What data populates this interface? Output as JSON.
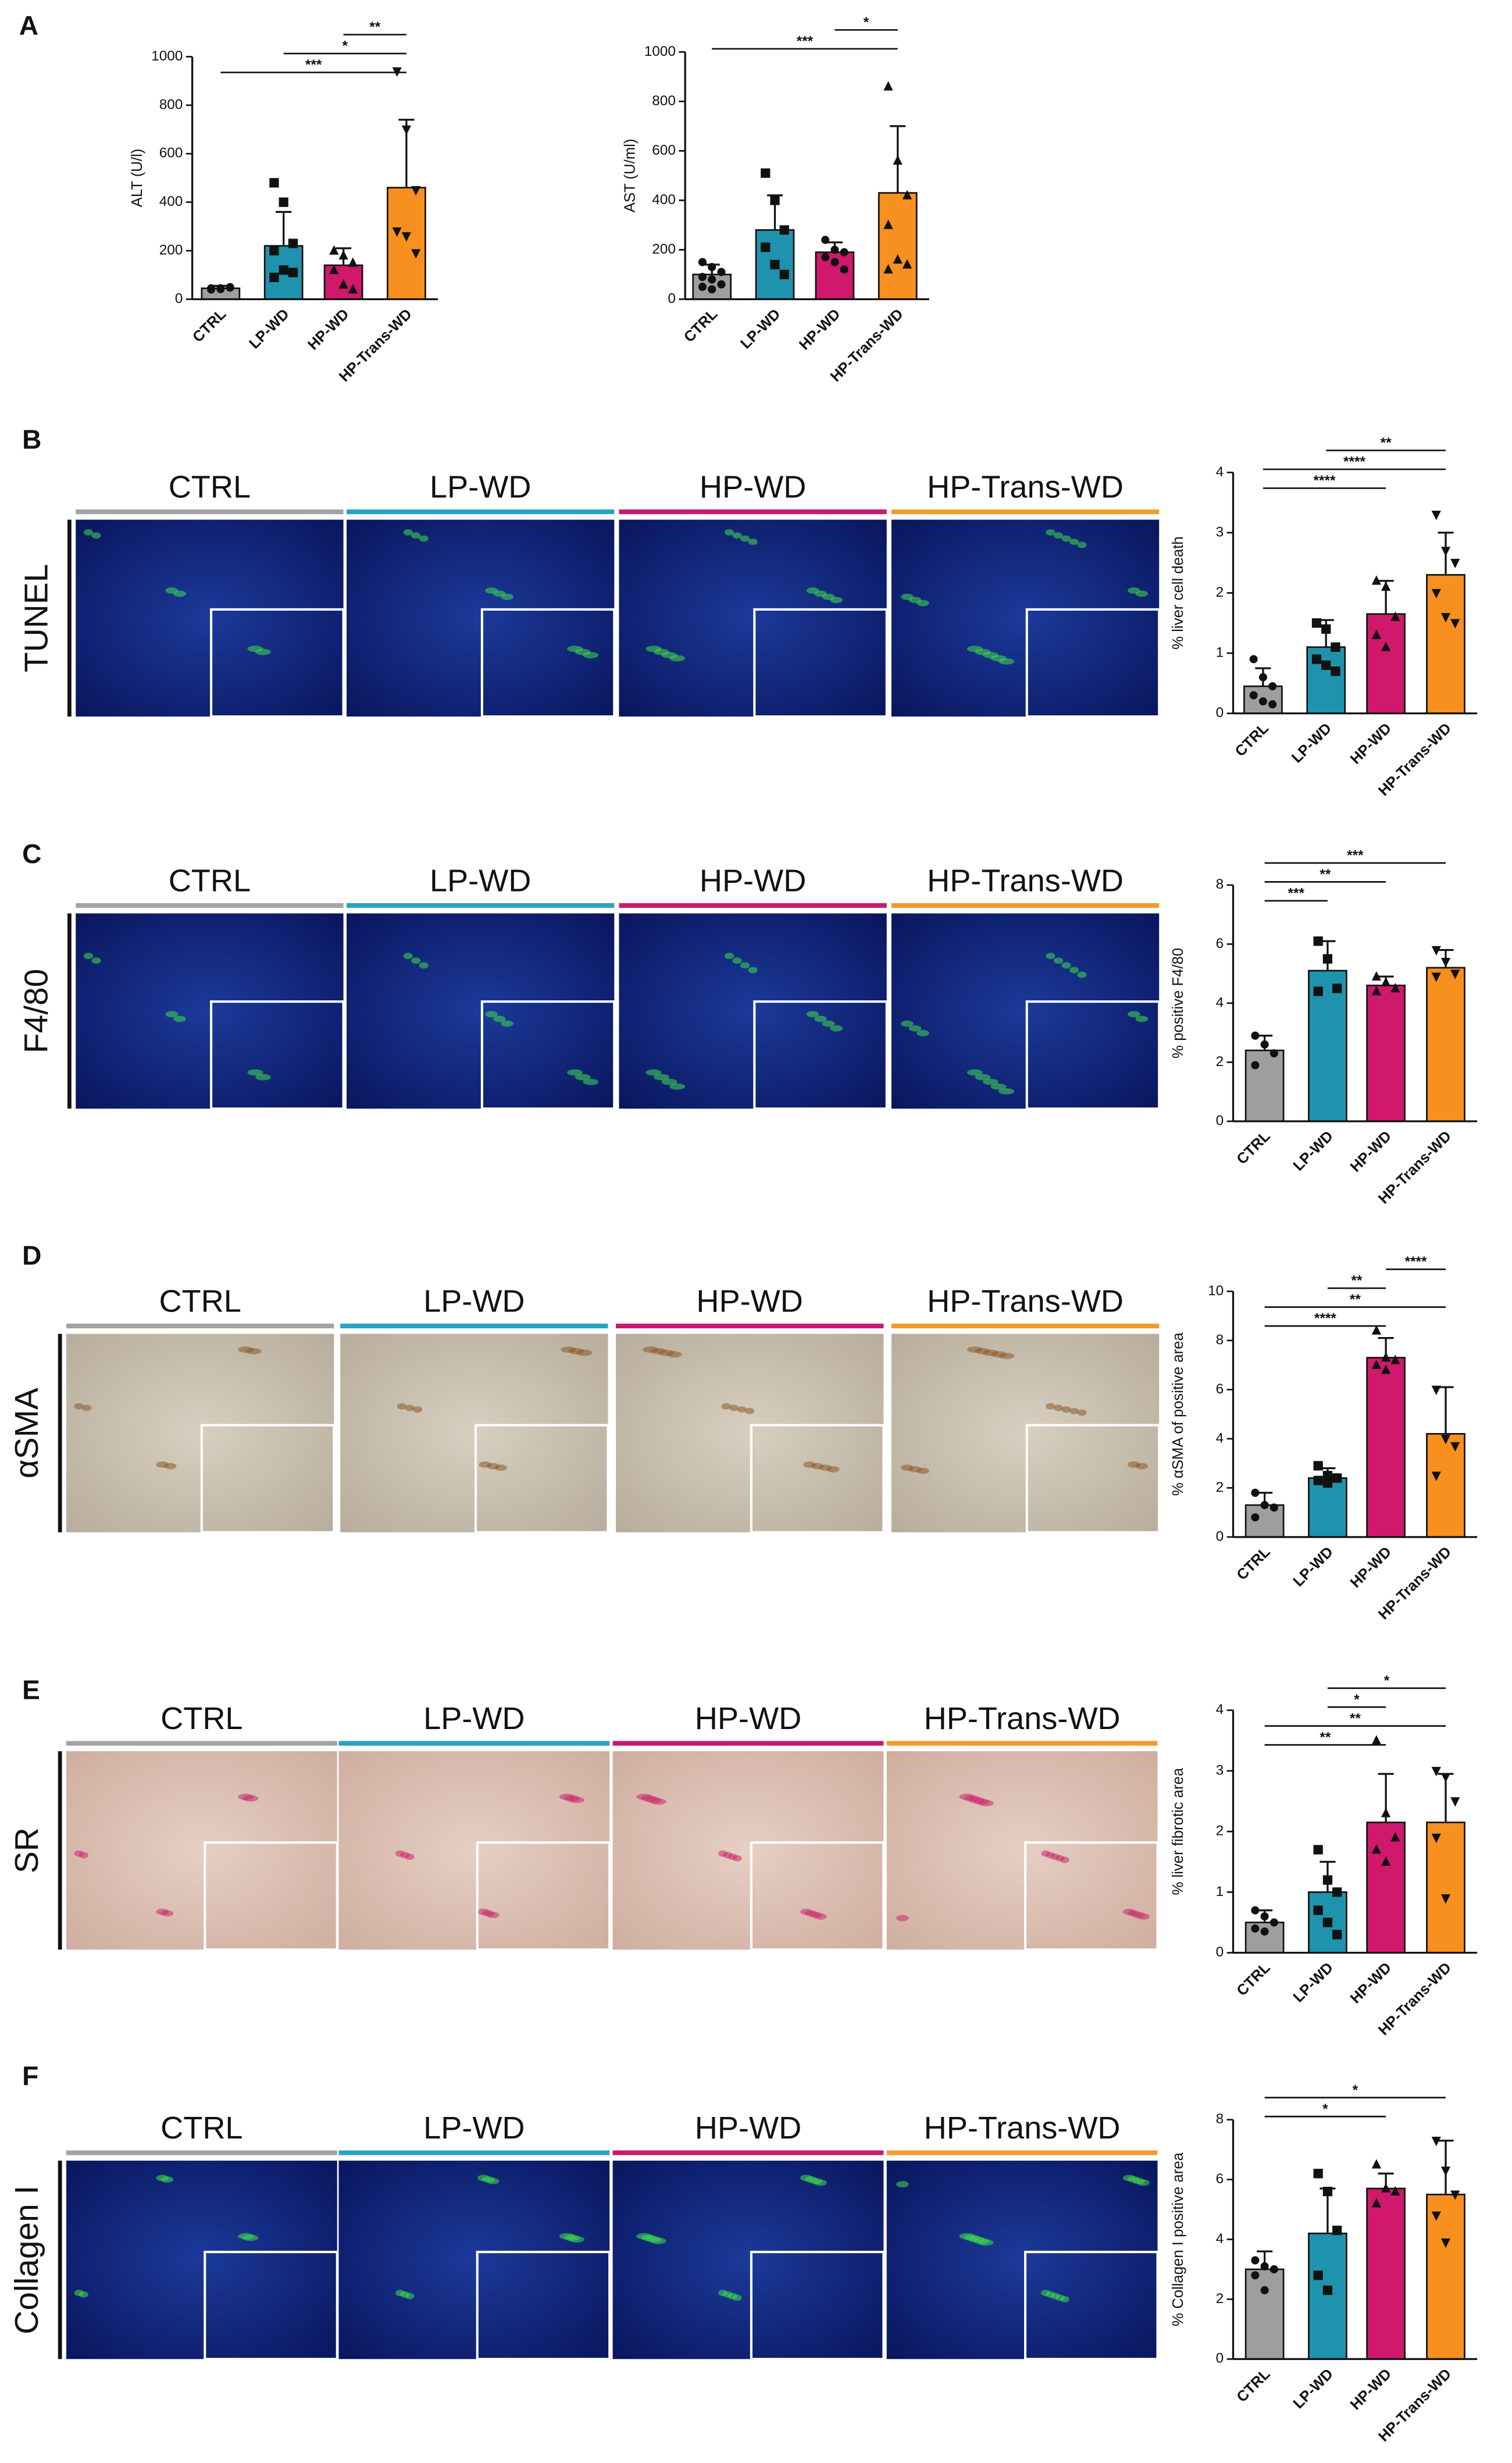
{
  "panel_letters": [
    "A",
    "B",
    "C",
    "D",
    "E",
    "F"
  ],
  "column_colors": [
    "#a3a3a3",
    "#2aa3c2",
    "#c81a6e",
    "#f39a2b"
  ],
  "image_rows": [
    {
      "label": "TUNEL",
      "style": "fluorescence",
      "columns": [
        "CTRL",
        "LP-WD",
        "HP-WD",
        "HP-Trans-WD"
      ]
    },
    {
      "label": "F4/80",
      "style": "fluorescence",
      "columns": [
        "CTRL",
        "LP-WD",
        "HP-WD",
        "HP-Trans-WD"
      ]
    },
    {
      "label": "αSMA",
      "style": "brightfield",
      "columns": [
        "CTRL",
        "LP-WD",
        "HP-WD",
        "HP-Trans-WD"
      ]
    },
    {
      "label": "SR",
      "style": "sirius-red",
      "columns": [
        "CTRL",
        "LP-WD",
        "HP-WD",
        "HP-Trans-WD"
      ]
    },
    {
      "label": "Collagen I",
      "style": "fluorescence",
      "columns": [
        "CTRL",
        "LP-WD",
        "HP-WD",
        "HP-Trans-WD"
      ]
    }
  ],
  "chart_data": [
    {
      "type": "bar",
      "ylabel": "ALT (U/l)",
      "categories": [
        "CTRL",
        "LP-WD",
        "HP-WD",
        "HP-Trans-WD"
      ],
      "colors": [
        "#9e9e9e",
        "#1f93ad",
        "#d0186c",
        "#f7901e"
      ],
      "markers": [
        "circle",
        "square",
        "triangle-up",
        "triangle-down"
      ],
      "values": [
        45,
        220,
        140,
        460
      ],
      "errors": [
        10,
        140,
        70,
        280
      ],
      "points": [
        [
          40,
          45,
          50,
          45,
          42,
          48
        ],
        [
          480,
          400,
          230,
          200,
          120,
          110,
          90
        ],
        [
          200,
          180,
          150,
          120,
          60,
          40
        ],
        [
          940,
          700,
          450,
          280,
          260,
          190
        ]
      ],
      "ylim": [
        0,
        1000
      ],
      "yticks": [
        0,
        200,
        400,
        600,
        800,
        1000
      ],
      "significance": [
        {
          "between": [
            2,
            3
          ],
          "label": "**"
        },
        {
          "between": [
            1,
            3
          ],
          "label": "*"
        },
        {
          "between": [
            0,
            3
          ],
          "label": "***"
        }
      ]
    },
    {
      "type": "bar",
      "ylabel": "AST (U/ml)",
      "categories": [
        "CTRL",
        "LP-WD",
        "HP-WD",
        "HP-Trans-WD"
      ],
      "colors": [
        "#9e9e9e",
        "#1f93ad",
        "#d0186c",
        "#f7901e"
      ],
      "markers": [
        "circle",
        "square",
        "circle",
        "triangle-up"
      ],
      "values": [
        100,
        280,
        190,
        430
      ],
      "errors": [
        40,
        140,
        40,
        270
      ],
      "points": [
        [
          150,
          130,
          110,
          90,
          80,
          60,
          50,
          40
        ],
        [
          510,
          400,
          280,
          210,
          140,
          100
        ],
        [
          240,
          200,
          190,
          170,
          150,
          120
        ],
        [
          860,
          560,
          420,
          300,
          160,
          140,
          120
        ]
      ],
      "ylim": [
        0,
        1000
      ],
      "yticks": [
        0,
        200,
        400,
        600,
        800,
        1000
      ],
      "significance": [
        {
          "between": [
            2,
            3
          ],
          "label": "*"
        },
        {
          "between": [
            0,
            3
          ],
          "label": "***"
        }
      ]
    },
    {
      "type": "bar",
      "ylabel": "% liver cell death",
      "categories": [
        "CTRL",
        "LP-WD",
        "HP-WD",
        "HP-Trans-WD"
      ],
      "colors": [
        "#9e9e9e",
        "#1f93ad",
        "#d0186c",
        "#f7901e"
      ],
      "markers": [
        "circle",
        "square",
        "triangle-up",
        "triangle-down"
      ],
      "values": [
        0.45,
        1.1,
        1.65,
        2.3
      ],
      "errors": [
        0.3,
        0.45,
        0.55,
        0.7
      ],
      "points": [
        [
          0.9,
          0.6,
          0.45,
          0.3,
          0.2,
          0.15
        ],
        [
          1.5,
          1.4,
          1.1,
          0.9,
          0.8,
          0.7
        ],
        [
          2.2,
          2.1,
          1.6,
          1.3,
          1.1
        ],
        [
          3.3,
          2.7,
          2.5,
          2.0,
          1.6,
          1.5
        ]
      ],
      "ylim": [
        0,
        4
      ],
      "yticks": [
        0,
        1,
        2,
        3,
        4
      ],
      "significance": [
        {
          "between": [
            1,
            3
          ],
          "label": "**"
        },
        {
          "between": [
            0,
            3
          ],
          "label": "****"
        },
        {
          "between": [
            0,
            2
          ],
          "label": "****"
        }
      ]
    },
    {
      "type": "bar",
      "ylabel": "% positive F4/80",
      "categories": [
        "CTRL",
        "LP-WD",
        "HP-WD",
        "HP-Trans-WD"
      ],
      "colors": [
        "#9e9e9e",
        "#1f93ad",
        "#d0186c",
        "#f7901e"
      ],
      "markers": [
        "circle",
        "square",
        "triangle-up",
        "triangle-down"
      ],
      "values": [
        2.4,
        5.1,
        4.6,
        5.2
      ],
      "errors": [
        0.5,
        1.0,
        0.3,
        0.6
      ],
      "points": [
        [
          2.9,
          2.6,
          2.3,
          1.9
        ],
        [
          6.1,
          5.5,
          4.5,
          4.4
        ],
        [
          4.9,
          4.7,
          4.5,
          4.4
        ],
        [
          5.8,
          5.4,
          5.0,
          4.9
        ]
      ],
      "ylim": [
        0,
        8
      ],
      "yticks": [
        0,
        2,
        4,
        6,
        8
      ],
      "significance": [
        {
          "between": [
            0,
            3
          ],
          "label": "***"
        },
        {
          "between": [
            0,
            2
          ],
          "label": "**"
        },
        {
          "between": [
            0,
            1
          ],
          "label": "***"
        }
      ]
    },
    {
      "type": "bar",
      "ylabel": "% αSMA of positive area",
      "categories": [
        "CTRL",
        "LP-WD",
        "HP-WD",
        "HP-Trans-WD"
      ],
      "colors": [
        "#9e9e9e",
        "#1f93ad",
        "#d0186c",
        "#f7901e"
      ],
      "markers": [
        "circle",
        "square",
        "triangle-up",
        "triangle-down"
      ],
      "values": [
        1.3,
        2.4,
        7.3,
        4.2
      ],
      "errors": [
        0.5,
        0.4,
        0.8,
        1.9
      ],
      "points": [
        [
          1.8,
          1.3,
          1.2,
          0.8
        ],
        [
          2.9,
          2.5,
          2.4,
          2.3,
          2.2
        ],
        [
          8.4,
          7.3,
          7.2,
          7.0,
          6.8
        ],
        [
          6.0,
          4.0,
          3.7,
          2.5
        ]
      ],
      "ylim": [
        0,
        10
      ],
      "yticks": [
        0,
        2,
        4,
        6,
        8,
        10
      ],
      "significance": [
        {
          "between": [
            2,
            3
          ],
          "label": "****"
        },
        {
          "between": [
            1,
            2
          ],
          "label": "**"
        },
        {
          "between": [
            0,
            3
          ],
          "label": "**"
        },
        {
          "between": [
            0,
            2
          ],
          "label": "****"
        }
      ]
    },
    {
      "type": "bar",
      "ylabel": "% liver fibrotic area",
      "categories": [
        "CTRL",
        "LP-WD",
        "HP-WD",
        "HP-Trans-WD"
      ],
      "colors": [
        "#9e9e9e",
        "#1f93ad",
        "#d0186c",
        "#f7901e"
      ],
      "markers": [
        "circle",
        "square",
        "triangle-up",
        "triangle-down"
      ],
      "values": [
        0.5,
        1.0,
        2.15,
        2.15
      ],
      "errors": [
        0.2,
        0.5,
        0.8,
        0.8
      ],
      "points": [
        [
          0.7,
          0.6,
          0.5,
          0.4,
          0.35
        ],
        [
          1.7,
          1.2,
          1.0,
          0.7,
          0.5,
          0.3
        ],
        [
          3.5,
          2.3,
          1.9,
          1.7,
          1.5
        ],
        [
          3.0,
          2.9,
          2.5,
          1.9,
          0.9
        ]
      ],
      "ylim": [
        0,
        4
      ],
      "yticks": [
        0,
        1,
        2,
        3,
        4
      ],
      "significance": [
        {
          "between": [
            1,
            3
          ],
          "label": "*"
        },
        {
          "between": [
            1,
            2
          ],
          "label": "*"
        },
        {
          "between": [
            0,
            3
          ],
          "label": "**"
        },
        {
          "between": [
            0,
            2
          ],
          "label": "**"
        }
      ]
    },
    {
      "type": "bar",
      "ylabel": "% Collagen I positive area",
      "categories": [
        "CTRL",
        "LP-WD",
        "HP-WD",
        "HP-Trans-WD"
      ],
      "colors": [
        "#9e9e9e",
        "#1f93ad",
        "#d0186c",
        "#f7901e"
      ],
      "markers": [
        "circle",
        "square",
        "triangle-up",
        "triangle-down"
      ],
      "values": [
        3.0,
        4.2,
        5.7,
        5.5
      ],
      "errors": [
        0.6,
        1.5,
        0.5,
        1.8
      ],
      "points": [
        [
          3.3,
          3.1,
          3.0,
          2.8,
          2.3
        ],
        [
          6.2,
          5.6,
          4.3,
          2.8,
          2.3
        ],
        [
          6.5,
          5.7,
          5.6,
          5.2
        ],
        [
          7.3,
          6.3,
          5.5,
          4.8,
          3.9
        ]
      ],
      "ylim": [
        0,
        8
      ],
      "yticks": [
        0,
        2,
        4,
        6,
        8
      ],
      "significance": [
        {
          "between": [
            0,
            3
          ],
          "label": "*"
        },
        {
          "between": [
            0,
            2
          ],
          "label": "*"
        }
      ]
    }
  ]
}
